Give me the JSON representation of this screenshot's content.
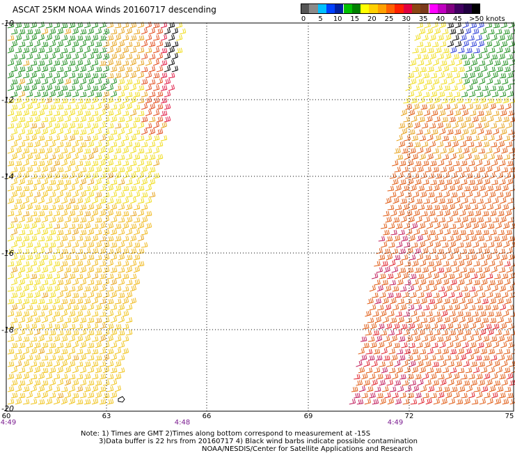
{
  "title": "ASCAT 25KM NOAA Winds 20160717 descending",
  "scale": {
    "labels": [
      "0",
      "5",
      "10",
      "15",
      "20",
      "25",
      "30",
      "35",
      "40",
      "45",
      ">50 knots"
    ],
    "colors": [
      "#555555",
      "#8a8a8a",
      "#00c0ff",
      "#0040ff",
      "#0020a0",
      "#00c000",
      "#008000",
      "#ffff00",
      "#ffd000",
      "#ffa000",
      "#ff6000",
      "#ff2000",
      "#e00040",
      "#8b4513",
      "#7a3a1a",
      "#ff00ff",
      "#c000c0",
      "#800080",
      "#400060",
      "#200040",
      "#000000"
    ]
  },
  "lat_labels": [
    "-10",
    "-12",
    "-14",
    "-16",
    "-18",
    "-20"
  ],
  "lon_labels": [
    "60",
    "63",
    "66",
    "69",
    "72",
    "75"
  ],
  "time_labels": [
    "4:49",
    "4:48",
    "4:49"
  ],
  "notes": {
    "line1": "Note: 1) Times are GMT 2)Times along bottom correspond to measurement at -15S",
    "line2": "3)Data buffer is 22 hrs from 20160717 4) Black wind barbs indicate possible contamination",
    "line3": "NOAA/NESDIS/Center for Satellite Applications and Research"
  },
  "map_data": {
    "lat_range": [
      -20,
      -10
    ],
    "lon_range": [
      60,
      75
    ],
    "wind_color_bins_knots": [
      0,
      5,
      10,
      15,
      20,
      25,
      30,
      35,
      40,
      45,
      50
    ]
  }
}
